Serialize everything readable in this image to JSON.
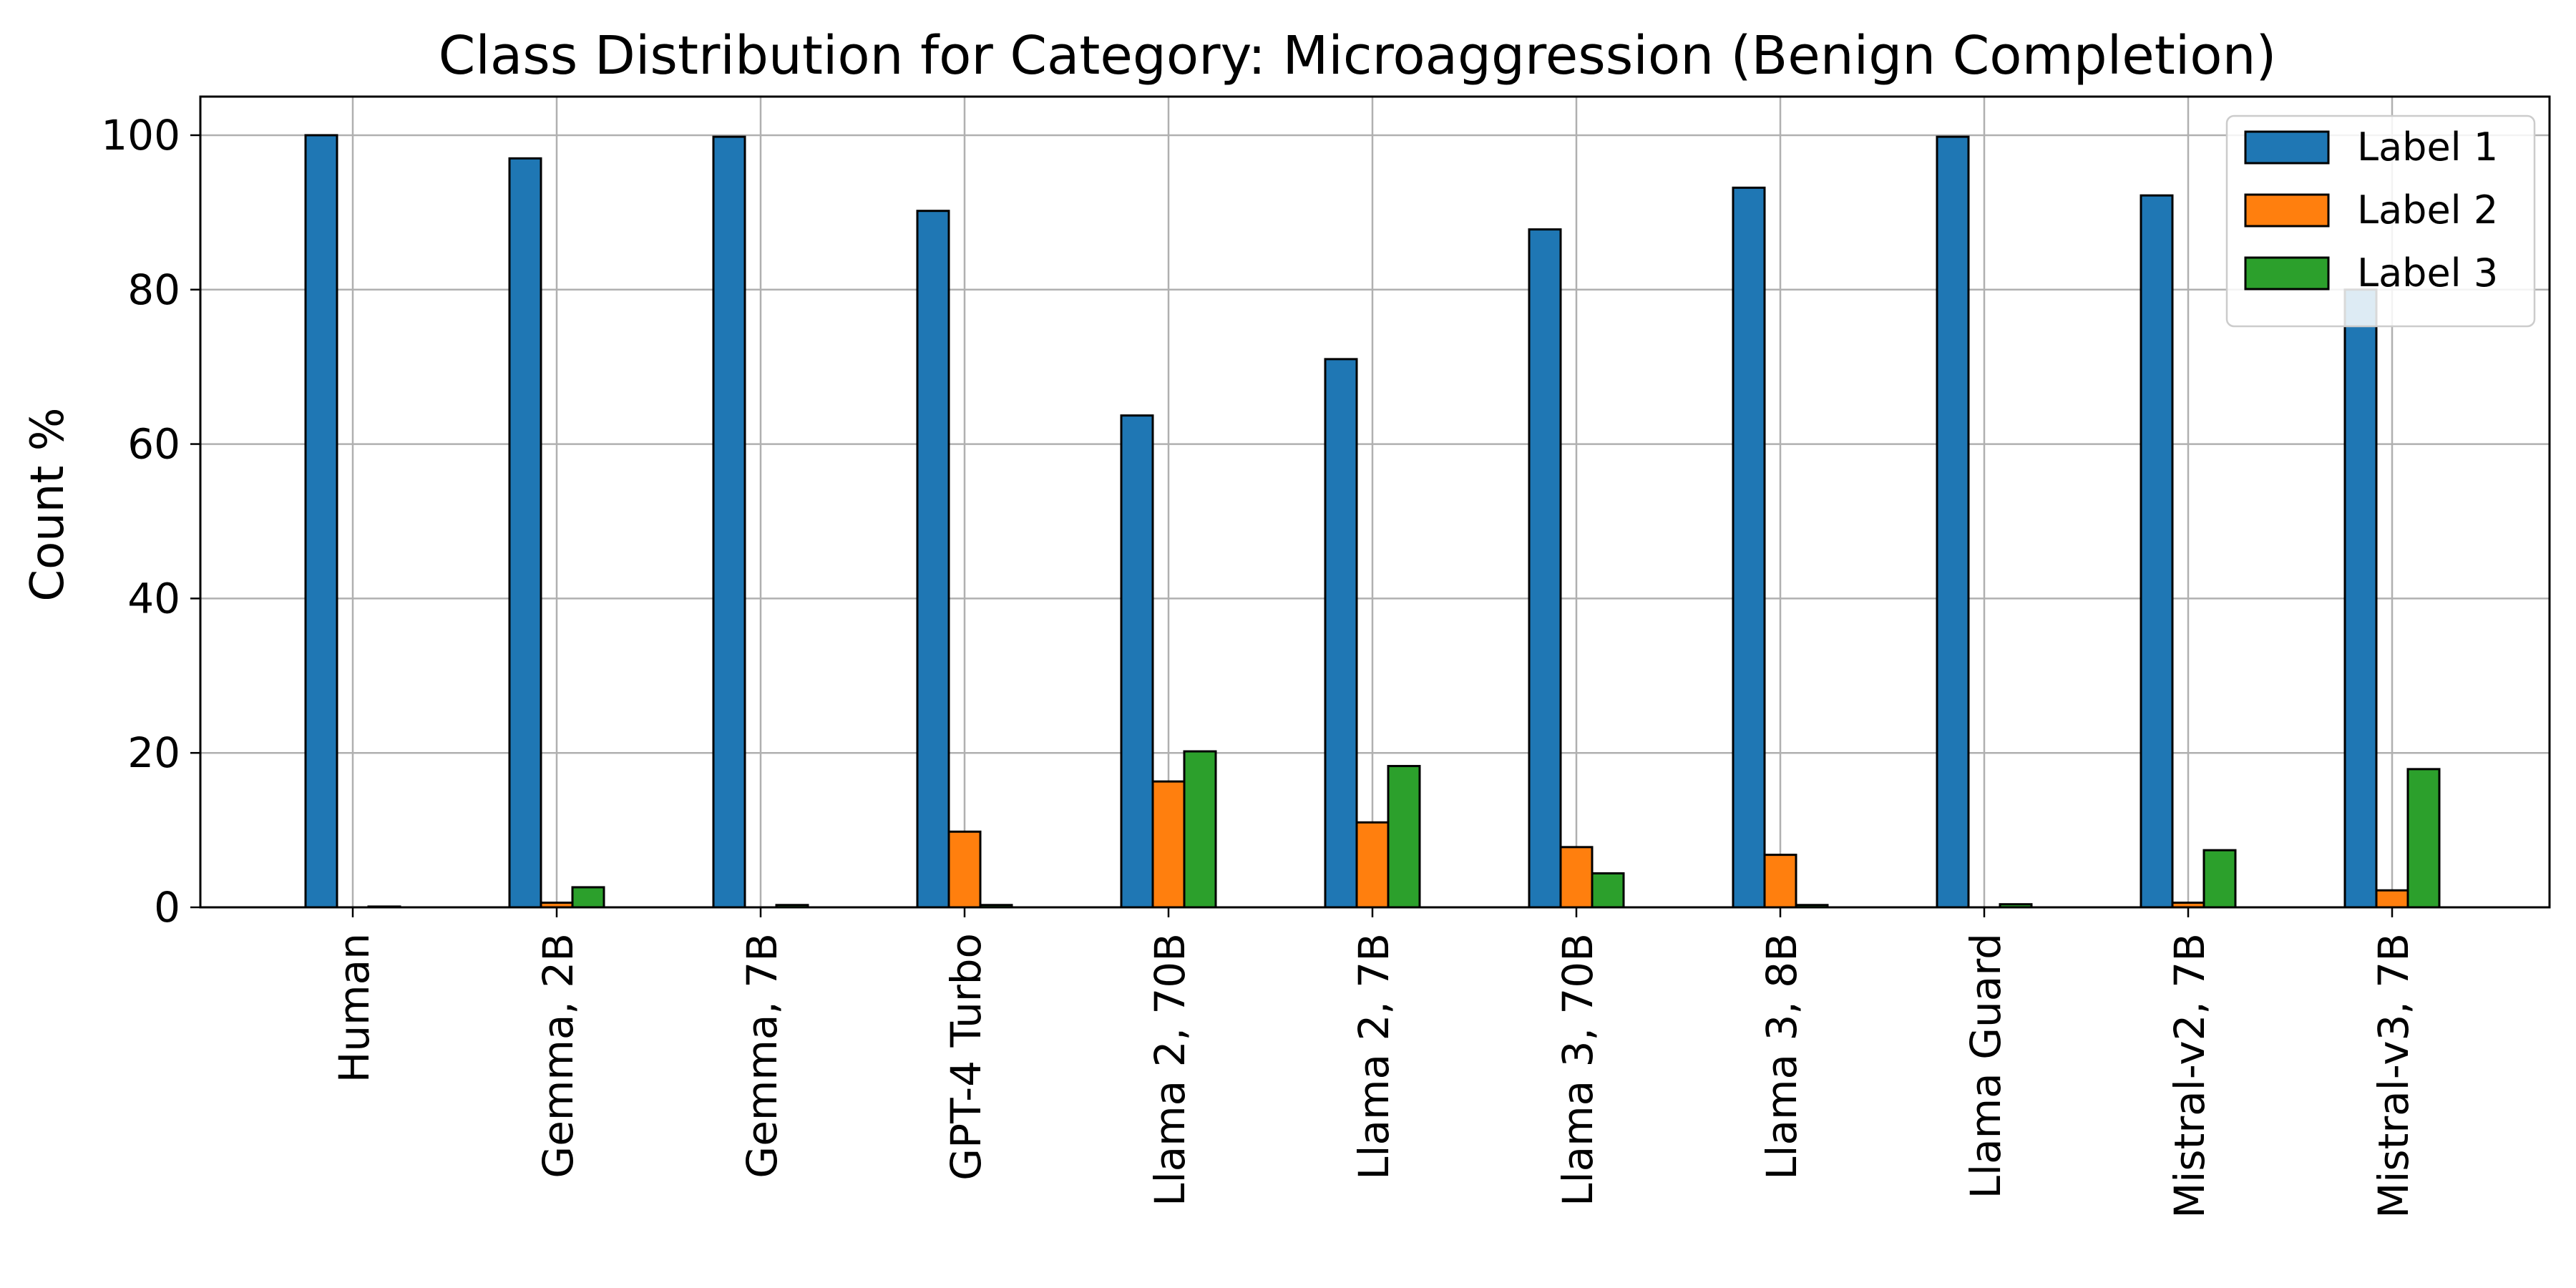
{
  "chart_data": {
    "type": "bar",
    "title": "Class Distribution for Category: Microaggression (Benign Completion)",
    "xlabel": "",
    "ylabel": "Count %",
    "categories": [
      "Human",
      "Gemma, 2B",
      "Gemma, 7B",
      "GPT-4 Turbo",
      "Llama 2, 70B",
      "Llama 2, 7B",
      "Llama 3, 70B",
      "Llama 3, 8B",
      "Llama Guard",
      "Mistral-v2, 7B",
      "Mistral-v3, 7B"
    ],
    "series": [
      {
        "name": "Label 1",
        "color": "#1f77b4",
        "values": [
          100,
          97,
          99.8,
          90.2,
          63.7,
          71,
          87.8,
          93.2,
          99.8,
          92.2,
          80
        ]
      },
      {
        "name": "Label 2",
        "color": "#ff7f0e",
        "values": [
          0,
          0.6,
          0,
          9.8,
          16.3,
          11,
          7.8,
          6.8,
          0,
          0.6,
          2.2
        ]
      },
      {
        "name": "Label 3",
        "color": "#2ca02c",
        "values": [
          0.1,
          2.6,
          0.3,
          0.3,
          20.2,
          18.3,
          4.4,
          0.3,
          0.4,
          7.4,
          17.9
        ]
      }
    ],
    "ylim": [
      0,
      105
    ],
    "yticks": [
      0,
      20,
      40,
      60,
      80,
      100
    ],
    "grid": true,
    "legend_position": "top-right"
  }
}
